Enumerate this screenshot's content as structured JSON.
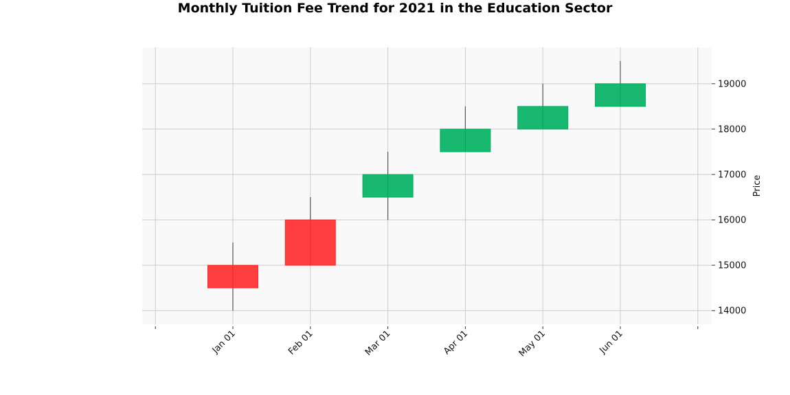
{
  "chart_data": {
    "type": "candlestick",
    "title": "Monthly Tuition Fee Trend for 2021 in the Education Sector",
    "ylabel": "Price",
    "ylim": [
      13700,
      19800
    ],
    "yticks": [
      14000,
      15000,
      16000,
      17000,
      18000,
      19000
    ],
    "categories": [
      "Jan 01",
      "Feb 01",
      "Mar 01",
      "Apr 01",
      "May 01",
      "Jun 01"
    ],
    "open": [
      15000,
      16000,
      16500,
      17500,
      18000,
      18500
    ],
    "high": [
      15500,
      16500,
      17500,
      18500,
      19000,
      19500
    ],
    "low": [
      14000,
      15000,
      16000,
      17500,
      18000,
      18500
    ],
    "close": [
      14500,
      15000,
      17000,
      18000,
      18500,
      19000
    ],
    "grid": true,
    "y_axis_side": "right",
    "colors": {
      "up": "#00b060",
      "down": "#ff2a2a",
      "wick": "#555555",
      "plot_bg": "#f9f9f9",
      "grid": "#cccccc"
    }
  }
}
